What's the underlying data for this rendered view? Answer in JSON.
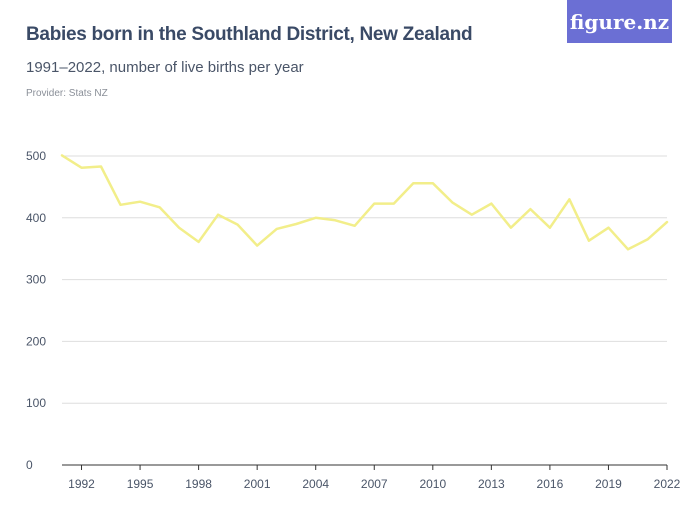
{
  "header": {
    "title": "Babies born in the Southland District, New Zealand",
    "subtitle": "1991–2022, number of live births per year",
    "provider": "Provider: Stats NZ",
    "logo_text": "figure.nz"
  },
  "colors": {
    "logo_bg": "#6b6fd4",
    "line": "#f2ee8a",
    "grid": "#dedede",
    "axis": "#333333"
  },
  "chart_data": {
    "type": "line",
    "title": "Babies born in the Southland District, New Zealand",
    "subtitle": "1991–2022, number of live births per year",
    "xlabel": "",
    "ylabel": "",
    "ylim": [
      0,
      500
    ],
    "xlim": [
      1991,
      2022
    ],
    "y_ticks": [
      0,
      100,
      200,
      300,
      400,
      500
    ],
    "x_ticks": [
      1992,
      1995,
      1998,
      2001,
      2004,
      2007,
      2010,
      2013,
      2016,
      2019,
      2022
    ],
    "grid": true,
    "x": [
      1991,
      1992,
      1993,
      1994,
      1995,
      1996,
      1997,
      1998,
      1999,
      2000,
      2001,
      2002,
      2003,
      2004,
      2005,
      2006,
      2007,
      2008,
      2009,
      2010,
      2011,
      2012,
      2013,
      2014,
      2015,
      2016,
      2017,
      2018,
      2019,
      2020,
      2021,
      2022
    ],
    "series": [
      {
        "values": [
          501,
          481,
          483,
          421,
          426,
          417,
          384,
          361,
          405,
          389,
          355,
          382,
          390,
          400,
          396,
          387,
          423,
          423,
          456,
          456,
          425,
          405,
          423,
          384,
          414,
          384,
          430,
          363,
          384,
          349,
          365,
          393
        ]
      }
    ]
  }
}
